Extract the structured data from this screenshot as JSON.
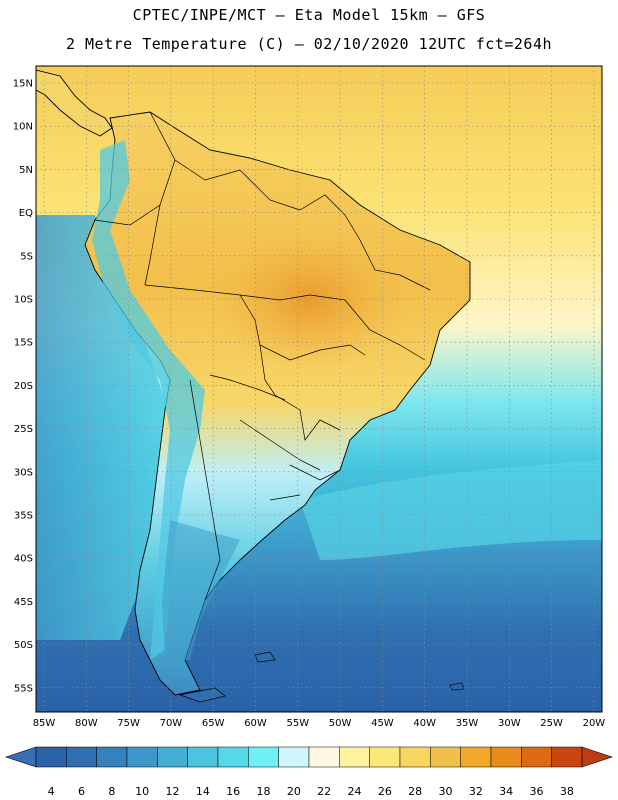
{
  "header": {
    "line1": "CPTEC/INPE/MCT –  Eta Model 15km – GFS",
    "line2": "2 Metre Temperature (C) – 02/10/2020 12UTC fct=264h"
  },
  "map": {
    "lat_labels": [
      "15N",
      "10N",
      "5N",
      "EQ",
      "5S",
      "10S",
      "15S",
      "20S",
      "25S",
      "30S",
      "35S",
      "40S",
      "45S",
      "50S",
      "55S"
    ],
    "lon_labels": [
      "85W",
      "80W",
      "75W",
      "70W",
      "65W",
      "60W",
      "55W",
      "50W",
      "45W",
      "40W",
      "35W",
      "30W",
      "25W",
      "20W"
    ]
  },
  "colorbar": {
    "labels": [
      "4",
      "6",
      "8",
      "10",
      "12",
      "14",
      "16",
      "18",
      "20",
      "22",
      "24",
      "26",
      "28",
      "30",
      "32",
      "34",
      "36",
      "38"
    ],
    "colors": [
      "#2a63a8",
      "#2f6fb0",
      "#3681bd",
      "#3e97c9",
      "#45afd3",
      "#4bc4dd",
      "#55d8e8",
      "#6ff0f5",
      "#cff6fb",
      "#fff8e0",
      "#fff3a0",
      "#fce77a",
      "#f8d55e",
      "#f0c048",
      "#f0a928",
      "#e88c1e",
      "#dd6a14",
      "#c9460f"
    ],
    "low_color": "#3a6eb5",
    "high_color": "#c03a12"
  }
}
